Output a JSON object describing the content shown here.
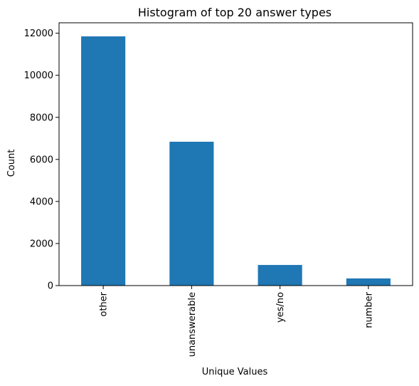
{
  "colors": {
    "bar": "#1f77b4",
    "axis": "#000000",
    "background": "#ffffff"
  },
  "chart_data": {
    "type": "bar",
    "title": "Histogram of top 20 answer types",
    "xlabel": "Unique Values",
    "ylabel": "Count",
    "categories": [
      "other",
      "unanswerable",
      "yes/no",
      "number"
    ],
    "values": [
      11850,
      6840,
      980,
      340
    ],
    "ylim": [
      0,
      12496
    ],
    "yticks": [
      0,
      2000,
      4000,
      6000,
      8000,
      10000,
      12000
    ],
    "ytick_labels": [
      "0",
      "2000",
      "4000",
      "6000",
      "8000",
      "10000",
      "12000"
    ],
    "grid": false,
    "legend": "none"
  }
}
